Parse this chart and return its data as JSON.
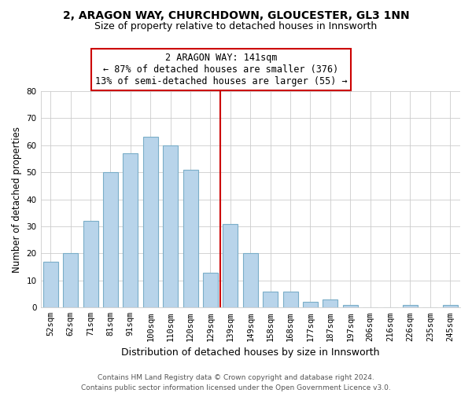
{
  "title": "2, ARAGON WAY, CHURCHDOWN, GLOUCESTER, GL3 1NN",
  "subtitle": "Size of property relative to detached houses in Innsworth",
  "xlabel": "Distribution of detached houses by size in Innsworth",
  "ylabel": "Number of detached properties",
  "bar_labels": [
    "52sqm",
    "62sqm",
    "71sqm",
    "81sqm",
    "91sqm",
    "100sqm",
    "110sqm",
    "120sqm",
    "129sqm",
    "139sqm",
    "149sqm",
    "158sqm",
    "168sqm",
    "177sqm",
    "187sqm",
    "197sqm",
    "206sqm",
    "216sqm",
    "226sqm",
    "235sqm",
    "245sqm"
  ],
  "bar_values": [
    17,
    20,
    32,
    50,
    57,
    63,
    60,
    51,
    13,
    31,
    20,
    6,
    6,
    2,
    3,
    1,
    0,
    0,
    1,
    0,
    1
  ],
  "bar_color": "#b8d4ea",
  "bar_edge_color": "#7aaec8",
  "background_color": "#ffffff",
  "grid_color": "#cccccc",
  "vline_color": "#cc0000",
  "annotation_text": "2 ARAGON WAY: 141sqm\n← 87% of detached houses are smaller (376)\n13% of semi-detached houses are larger (55) →",
  "annotation_box_color": "#ffffff",
  "annotation_box_edge": "#cc0000",
  "ylim": [
    0,
    80
  ],
  "yticks": [
    0,
    10,
    20,
    30,
    40,
    50,
    60,
    70,
    80
  ],
  "footer_line1": "Contains HM Land Registry data © Crown copyright and database right 2024.",
  "footer_line2": "Contains public sector information licensed under the Open Government Licence v3.0.",
  "title_fontsize": 10,
  "subtitle_fontsize": 9,
  "xlabel_fontsize": 9,
  "ylabel_fontsize": 8.5,
  "tick_fontsize": 7.5,
  "annotation_fontsize": 8.5,
  "footer_fontsize": 6.5
}
